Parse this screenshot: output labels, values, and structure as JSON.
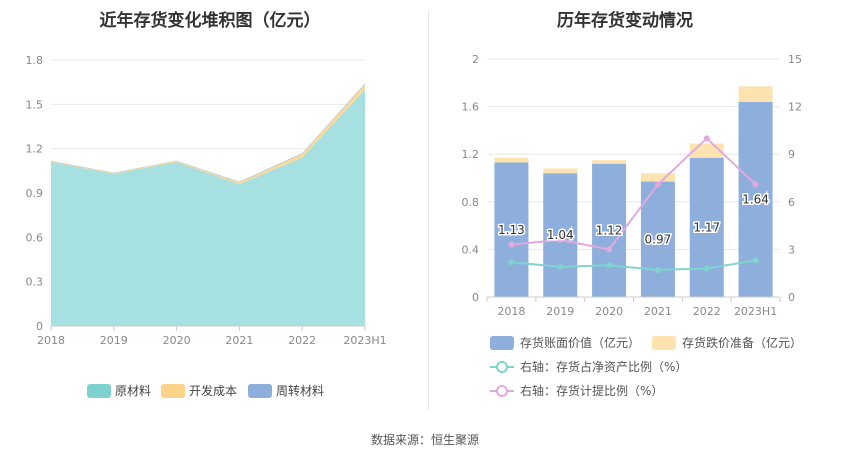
{
  "source_note": "数据来源：恒生聚源",
  "chart_data": [
    {
      "type": "area",
      "stacked": true,
      "title": "近年存货变化堆积图（亿元）",
      "categories": [
        "2018",
        "2019",
        "2020",
        "2021",
        "2022",
        "2023H1"
      ],
      "ylim": [
        0,
        1.8
      ],
      "yticks": [
        "0",
        "0.3",
        "0.6",
        "0.9",
        "1.2",
        "1.5",
        "1.8"
      ],
      "legend_position": "bottom",
      "series": [
        {
          "name": "原材料",
          "color": "#a6e0e0",
          "legend_color": "#7fd1d1",
          "values": [
            1.11,
            1.03,
            1.11,
            0.96,
            1.14,
            1.6
          ]
        },
        {
          "name": "开发成本",
          "color": "#fbd996",
          "legend_color": "#fbd48a",
          "values": [
            0.005,
            0.006,
            0.007,
            0.012,
            0.025,
            0.035
          ]
        },
        {
          "name": "周转材料",
          "color": "#8eaedc",
          "legend_color": "#8eaedc",
          "values": [
            0.002,
            0.002,
            0.002,
            0.003,
            0.004,
            0.005
          ]
        }
      ]
    },
    {
      "type": "bar",
      "stacked": true,
      "title": "历年存货变动情况",
      "categories": [
        "2018",
        "2019",
        "2020",
        "2021",
        "2022",
        "2023H1"
      ],
      "ylim": [
        0,
        2
      ],
      "yticks": [
        "0",
        "0.4",
        "0.8",
        "1.2",
        "1.6",
        "2"
      ],
      "y2lim": [
        0,
        15
      ],
      "y2ticks": [
        "0",
        "3",
        "6",
        "9",
        "12",
        "15"
      ],
      "legend_position": "bottom",
      "series": [
        {
          "name": "存货账面价值（亿元）",
          "axis": "left",
          "kind": "bar",
          "color": "#8eaedc",
          "values": [
            1.13,
            1.04,
            1.12,
            0.97,
            1.17,
            1.64
          ],
          "labels": [
            "1.13",
            "1.04",
            "1.12",
            "0.97",
            "1.17",
            "1.64"
          ]
        },
        {
          "name": "存货跌价准备（亿元）",
          "axis": "left",
          "kind": "bar",
          "color": "#fde3b0",
          "values": [
            0.04,
            0.04,
            0.03,
            0.07,
            0.12,
            0.13
          ]
        },
        {
          "name": "右轴：存货占净资产比例（%）",
          "axis": "right",
          "kind": "line",
          "color": "#7ed4cf",
          "values": [
            2.2,
            1.9,
            2.0,
            1.7,
            1.8,
            2.3
          ]
        },
        {
          "name": "右轴：存货计提比例（%）",
          "axis": "right",
          "kind": "line",
          "color": "#e2a9dd",
          "values": [
            3.3,
            3.6,
            3.0,
            7.1,
            10.0,
            7.1
          ]
        }
      ]
    }
  ]
}
